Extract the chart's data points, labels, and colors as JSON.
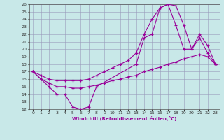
{
  "xlabel": "Windchill (Refroidissement éolien,°C)",
  "xlim": [
    -0.5,
    23.5
  ],
  "ylim": [
    12,
    26
  ],
  "xticks": [
    0,
    1,
    2,
    3,
    4,
    5,
    6,
    7,
    8,
    9,
    10,
    11,
    12,
    13,
    14,
    15,
    16,
    17,
    18,
    19,
    20,
    21,
    22,
    23
  ],
  "yticks": [
    12,
    13,
    14,
    15,
    16,
    17,
    18,
    19,
    20,
    21,
    22,
    23,
    24,
    25,
    26
  ],
  "bg_color": "#c8e8e8",
  "grid_color": "#9999bb",
  "line_color": "#990099",
  "line1_x": [
    0,
    1,
    2,
    3,
    4,
    5,
    6,
    7,
    8,
    13,
    14,
    15,
    16,
    17,
    18,
    19,
    20,
    21,
    22,
    23
  ],
  "line1_y": [
    17.0,
    16.0,
    15.0,
    14.0,
    14.0,
    12.3,
    12.0,
    12.3,
    15.0,
    18.0,
    21.5,
    22.0,
    25.5,
    26.0,
    25.8,
    23.2,
    20.0,
    21.5,
    19.5,
    18.0
  ],
  "line2_x": [
    0,
    1,
    2,
    3,
    4,
    5,
    6,
    7,
    8,
    9,
    10,
    11,
    12,
    13,
    14,
    15,
    16,
    17,
    18,
    19,
    20,
    21,
    22,
    23
  ],
  "line2_y": [
    17.0,
    16.0,
    15.5,
    15.0,
    15.0,
    14.8,
    14.8,
    15.0,
    15.2,
    15.5,
    15.8,
    16.0,
    16.3,
    16.5,
    17.0,
    17.3,
    17.6,
    18.0,
    18.3,
    18.7,
    19.0,
    19.3,
    19.0,
    18.0
  ],
  "line3_x": [
    0,
    1,
    2,
    3,
    4,
    5,
    6,
    7,
    8,
    9,
    10,
    11,
    12,
    13,
    14,
    15,
    16,
    17,
    18,
    19,
    20,
    21,
    22,
    23
  ],
  "line3_y": [
    17.0,
    16.5,
    16.0,
    15.8,
    15.8,
    15.8,
    15.8,
    16.0,
    16.5,
    17.0,
    17.5,
    18.0,
    18.5,
    19.5,
    22.0,
    24.0,
    25.5,
    26.0,
    23.2,
    20.0,
    20.0,
    22.0,
    20.5,
    18.0
  ]
}
